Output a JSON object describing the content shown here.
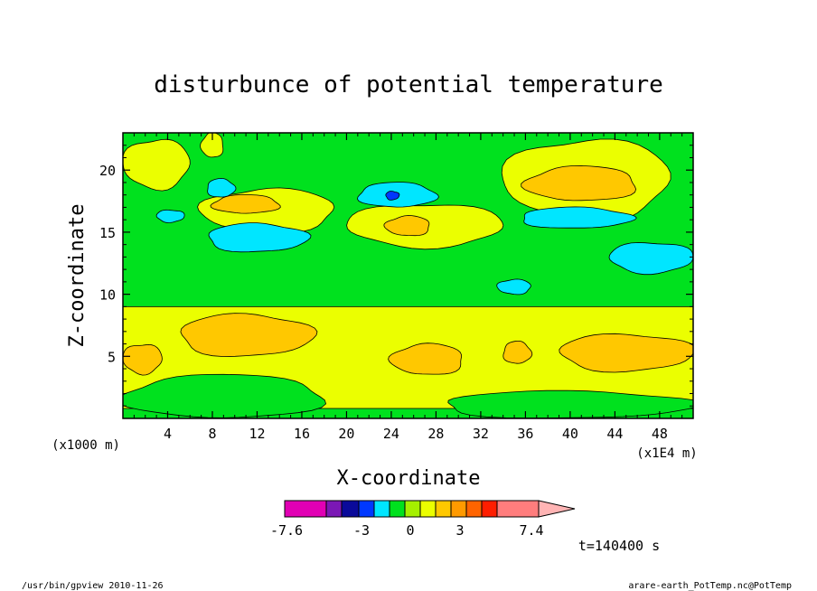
{
  "chart_data": {
    "type": "heatmap",
    "title": "disturbunce of potential temperature",
    "xlabel": "X-coordinate",
    "ylabel": "Z-coordinate",
    "x_unit_label": "(x1E4 m)",
    "y_unit_label": "(x1000 m)",
    "xlim": [
      0,
      51
    ],
    "ylim": [
      0,
      23
    ],
    "x_ticks": [
      4,
      8,
      12,
      16,
      20,
      24,
      28,
      32,
      36,
      40,
      44,
      48
    ],
    "y_ticks": [
      5,
      10,
      15,
      20
    ],
    "grid": false,
    "colorbar": {
      "colors": [
        "#e100b4",
        "#7b18b5",
        "#0a0a9a",
        "#0038ff",
        "#00e6ff",
        "#00e11e",
        "#a5f000",
        "#ebff00",
        "#ffc800",
        "#ff9a00",
        "#ff6400",
        "#ff1e00",
        "#ff7d7d",
        "#ffb4b4"
      ],
      "tick_labels": [
        "-7.6",
        "-3",
        "0",
        "3",
        "7.4"
      ]
    },
    "time_label": "t=140400 s",
    "background_level_color": "#00e11e",
    "regions": [
      {
        "level_color": "#ebff00",
        "x_range": [
          0,
          51
        ],
        "z_range": [
          0.8,
          9.0
        ]
      },
      {
        "level_color": "#ffc800",
        "x_range": [
          5,
          17
        ],
        "z_range": [
          5.0,
          8.4
        ]
      },
      {
        "level_color": "#ffc800",
        "x_range": [
          0,
          3.5
        ],
        "z_range": [
          3.6,
          6.0
        ]
      },
      {
        "level_color": "#ffc800",
        "x_range": [
          24,
          30.5
        ],
        "z_range": [
          3.5,
          6.0
        ]
      },
      {
        "level_color": "#ffc800",
        "x_range": [
          34,
          36.5
        ],
        "z_range": [
          4.4,
          6.2
        ]
      },
      {
        "level_color": "#ffc800",
        "x_range": [
          39,
          51
        ],
        "z_range": [
          3.8,
          6.8
        ]
      },
      {
        "level_color": "#ebff00",
        "x_range": [
          34,
          49
        ],
        "z_range": [
          16.0,
          22.5
        ]
      },
      {
        "level_color": "#ffc800",
        "x_range": [
          36,
          46
        ],
        "z_range": [
          17.5,
          20.3
        ]
      },
      {
        "level_color": "#00e6ff",
        "x_range": [
          35.5,
          45.5
        ],
        "z_range": [
          15.3,
          17.0
        ]
      },
      {
        "level_color": "#00e6ff",
        "x_range": [
          43.5,
          51
        ],
        "z_range": [
          11.7,
          14.2
        ]
      },
      {
        "level_color": "#ebff00",
        "x_range": [
          7,
          19
        ],
        "z_range": [
          15.0,
          18.5
        ]
      },
      {
        "level_color": "#ffc800",
        "x_range": [
          8,
          14
        ],
        "z_range": [
          16.5,
          18.0
        ]
      },
      {
        "level_color": "#00e6ff",
        "x_range": [
          7.5,
          16.5
        ],
        "z_range": [
          13.4,
          15.7
        ]
      },
      {
        "level_color": "#ebff00",
        "x_range": [
          20,
          34
        ],
        "z_range": [
          13.8,
          17.3
        ]
      },
      {
        "level_color": "#ffc800",
        "x_range": [
          23.5,
          27.5
        ],
        "z_range": [
          14.7,
          16.3
        ]
      },
      {
        "level_color": "#00e6ff",
        "x_range": [
          21,
          28
        ],
        "z_range": [
          17.0,
          19.0
        ]
      },
      {
        "level_color": "#0038ff",
        "x_range": [
          23.5,
          24.7
        ],
        "z_range": [
          17.6,
          18.3
        ]
      },
      {
        "level_color": "#ebff00",
        "x_range": [
          0,
          6
        ],
        "z_range": [
          18.5,
          22.5
        ]
      },
      {
        "level_color": "#ebff00",
        "x_range": [
          7,
          9
        ],
        "z_range": [
          21.0,
          23.0
        ]
      },
      {
        "level_color": "#00e6ff",
        "x_range": [
          7.5,
          10
        ],
        "z_range": [
          17.8,
          19.3
        ]
      },
      {
        "level_color": "#00e6ff",
        "x_range": [
          3,
          5.5
        ],
        "z_range": [
          15.8,
          16.8
        ]
      },
      {
        "level_color": "#00e6ff",
        "x_range": [
          33.5,
          36.5
        ],
        "z_range": [
          10.0,
          11.2
        ]
      },
      {
        "level_color": "#00e11e",
        "x_range": [
          0,
          18
        ],
        "z_range": [
          0,
          3.5
        ]
      },
      {
        "level_color": "#00e11e",
        "x_range": [
          28.5,
          51
        ],
        "z_range": [
          0,
          2.2
        ]
      }
    ]
  },
  "footer": {
    "left": "/usr/bin/gpview  2010-11-26",
    "right": "arare-earth_PotTemp.nc@PotTemp"
  }
}
